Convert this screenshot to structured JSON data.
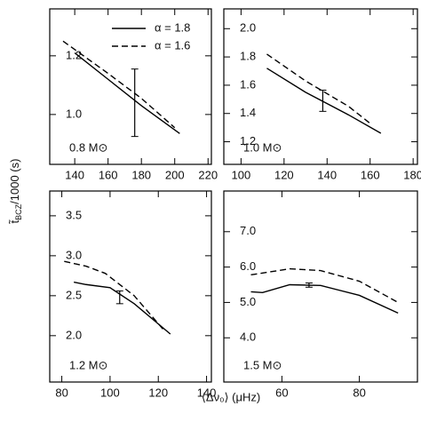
{
  "figure": {
    "xlabel": "⟨Δν₀⟩ (μHz)",
    "ylabel": {
      "symbol": "t̃",
      "sub": "BCZ",
      "rest": "/1000 (s)"
    }
  },
  "chart_data": [
    {
      "type": "line",
      "label": "0.8 M⊙",
      "xlim": [
        125,
        222
      ],
      "xticks": [
        140,
        160,
        180,
        200,
        220
      ],
      "ylim": [
        0.83,
        1.36
      ],
      "yticks": [
        {
          "value": 1,
          "label": "1.0"
        },
        1.2
      ],
      "series": [
        {
          "name": "α = 1.8",
          "color": "#000000",
          "dash": false,
          "x": [
            140,
            160,
            180,
            203
          ],
          "values": [
            1.21,
            1.12,
            1.03,
            0.935
          ]
        },
        {
          "name": "α = 1.6",
          "color": "#000000",
          "dash": true,
          "x": [
            133,
            160,
            180,
            200
          ],
          "values": [
            1.25,
            1.14,
            1.055,
            0.955
          ]
        }
      ],
      "errorbar": {
        "x": 176,
        "y": 1.04,
        "err": 0.115
      }
    },
    {
      "type": "line",
      "label": "1.0 M⊙",
      "xlim": [
        92,
        182
      ],
      "xticks": [
        100,
        120,
        140,
        160,
        180
      ],
      "ylim": [
        1.04,
        2.14
      ],
      "yticks": [
        1.2,
        1.4,
        1.6,
        1.8,
        {
          "value": 2,
          "label": "2.0"
        }
      ],
      "series": [
        {
          "color": "#000000",
          "dash": false,
          "x": [
            112,
            130,
            150,
            165
          ],
          "values": [
            1.72,
            1.55,
            1.39,
            1.26
          ]
        },
        {
          "color": "#000000",
          "dash": true,
          "x": [
            112,
            130,
            150,
            160
          ],
          "values": [
            1.82,
            1.63,
            1.45,
            1.33
          ]
        }
      ],
      "errorbar": {
        "x": 138,
        "y": 1.49,
        "err": 0.075
      }
    },
    {
      "type": "line",
      "label": "1.2 M⊙",
      "xlim": [
        75,
        142
      ],
      "xticks": [
        80,
        100,
        120,
        140
      ],
      "ylim": [
        1.42,
        3.81
      ],
      "yticks": [
        {
          "value": 2,
          "label": "2.0"
        },
        2.5,
        {
          "value": 3,
          "label": "3.0"
        },
        3.5
      ],
      "series": [
        {
          "color": "#000000",
          "dash": false,
          "x": [
            85,
            90,
            100,
            110,
            125
          ],
          "values": [
            2.67,
            2.64,
            2.6,
            2.4,
            2.02
          ]
        },
        {
          "color": "#000000",
          "dash": true,
          "x": [
            81,
            90,
            98,
            110,
            122
          ],
          "values": [
            2.93,
            2.87,
            2.78,
            2.5,
            2.08
          ]
        }
      ],
      "errorbar": {
        "x": 104,
        "y": 2.48,
        "err": 0.08
      }
    },
    {
      "type": "line",
      "label": "1.5 M⊙",
      "xlim": [
        45,
        95
      ],
      "xticks": [
        60,
        80
      ],
      "ylim": [
        2.75,
        8.15
      ],
      "yticks": [
        {
          "value": 4,
          "label": "4.0"
        },
        {
          "value": 5,
          "label": "5.0"
        },
        {
          "value": 6,
          "label": "6.0"
        },
        {
          "value": 7,
          "label": "7.0"
        }
      ],
      "series": [
        {
          "color": "#000000",
          "dash": false,
          "x": [
            52,
            55,
            62,
            70,
            80,
            90
          ],
          "values": [
            5.3,
            5.28,
            5.5,
            5.48,
            5.2,
            4.7
          ]
        },
        {
          "color": "#000000",
          "dash": true,
          "x": [
            52,
            62,
            70,
            80,
            90
          ],
          "values": [
            5.78,
            5.95,
            5.9,
            5.6,
            5.0
          ]
        }
      ],
      "errorbar": {
        "x": 67,
        "y": 5.49,
        "err": 0.06
      }
    }
  ]
}
